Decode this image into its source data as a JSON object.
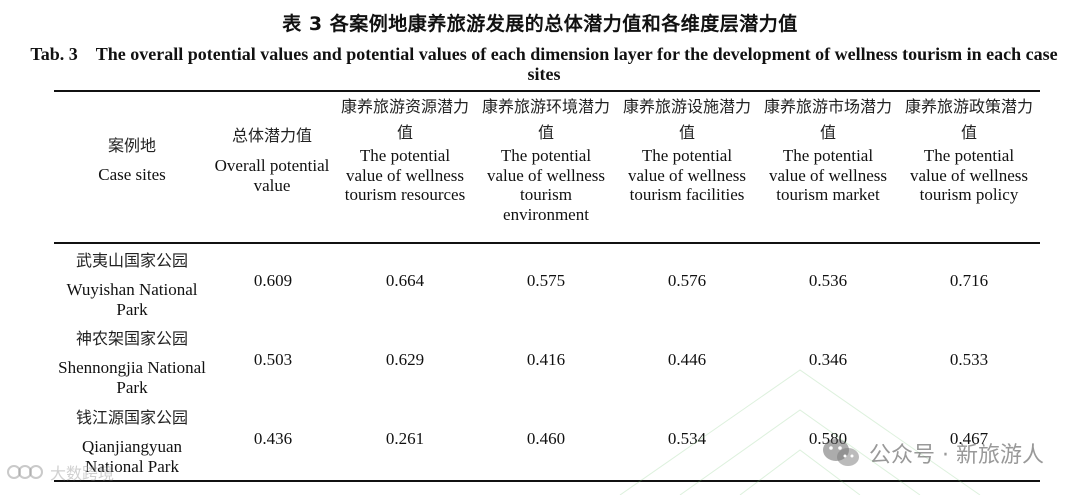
{
  "title": {
    "cn": "表 3  各案例地康养旅游发展的总体潜力值和各维度层潜力值",
    "tab_no": "Tab. 3",
    "en": "The overall potential values and potential values of each dimension layer for the development of wellness tourism in each case sites"
  },
  "columns": [
    {
      "cn": "案例地",
      "en": "Case sites"
    },
    {
      "cn": "总体潜力值",
      "en": "Overall potential value"
    },
    {
      "cn": "康养旅游资源潜力值",
      "en": "The potential value of wellness tourism resources"
    },
    {
      "cn": "康养旅游环境潜力值",
      "en": "The potential value of wellness tourism environment"
    },
    {
      "cn": "康养旅游设施潜力值",
      "en": "The potential value of wellness tourism facilities"
    },
    {
      "cn": "康养旅游市场潜力值",
      "en": "The potential value of wellness tourism market"
    },
    {
      "cn": "康养旅游政策潜力值",
      "en": "The potential value of wellness tourism policy"
    }
  ],
  "rows": [
    {
      "site_cn": "武夷山国家公园",
      "site_en": "Wuyishan National Park",
      "values": [
        "0.609",
        "0.664",
        "0.575",
        "0.576",
        "0.536",
        "0.716"
      ]
    },
    {
      "site_cn": "神农架国家公园",
      "site_en": "Shennongjia National Park",
      "values": [
        "0.503",
        "0.629",
        "0.416",
        "0.446",
        "0.346",
        "0.533"
      ]
    },
    {
      "site_cn": "钱江源国家公园",
      "site_en": "Qianjiangyuan National Park",
      "values": [
        "0.436",
        "0.261",
        "0.460",
        "0.534",
        "0.580",
        "0.467"
      ]
    }
  ],
  "watermark": {
    "right_text": "公众号 · 新旅游人",
    "left_text": "大数跨境",
    "icon": "wechat-icon"
  }
}
